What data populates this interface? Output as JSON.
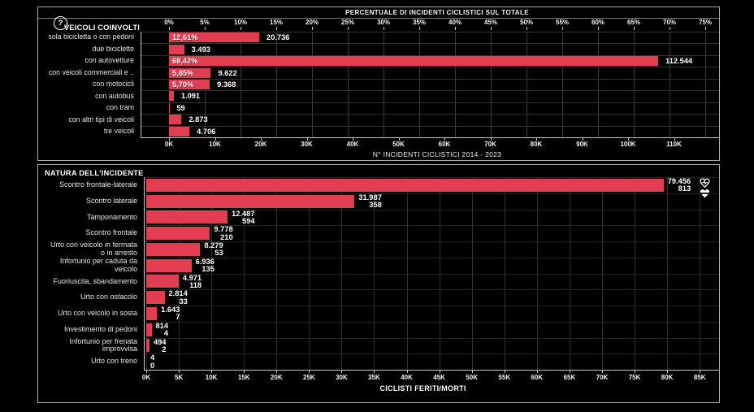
{
  "window": {
    "background": "#000000",
    "panel_border": "#a9a9a9",
    "bar_color": "#e23e52",
    "help_glyph": "?"
  },
  "icons": {
    "help": "question-circle-icon",
    "injured": "heart-pulse-icon",
    "deaths": "heart-flatline-icon"
  },
  "chart_data": [
    {
      "type": "bar",
      "title": "VEICOLI COINVOLTI",
      "top_axis": {
        "label": "PERCENTUALE DI INCIDENTI CICLISTICI SUL TOTALE",
        "tick_labels": [
          "0%",
          "5%",
          "10%",
          "15%",
          "20%",
          "25%",
          "30%",
          "35%",
          "40%",
          "45%",
          "50%",
          "55%",
          "60%",
          "65%",
          "70%",
          "75%"
        ],
        "range_pct": [
          0,
          75
        ]
      },
      "bottom_axis": {
        "label": "N° INCIDENTI CICLISTICI 2014 - 2023",
        "tick_labels": [
          "0K",
          "10K",
          "20K",
          "30K",
          "40K",
          "50K",
          "60K",
          "70K",
          "80K",
          "90K",
          "100K",
          "110K"
        ],
        "range": [
          0,
          110000
        ]
      },
      "grid": true,
      "categories": [
        "sola bicicletta o con pedoni",
        "due biciclette",
        "con autovetture",
        "con veicoli commerciali e ..",
        "con motocicli",
        "con autobus",
        "con tram",
        "con altri tipi di veicoli",
        "tre veicoli"
      ],
      "values": [
        20736,
        3493,
        112544,
        9622,
        9368,
        1091,
        59,
        2873,
        4706
      ],
      "value_labels": [
        "20.736",
        "3.493",
        "112.544",
        "9.622",
        "9.368",
        "1.091",
        "59",
        "2.873",
        "4.706"
      ],
      "pct_labels": [
        "12,61%",
        "",
        "68,42%",
        "5,85%",
        "5,70%",
        "",
        "",
        "",
        ""
      ]
    },
    {
      "type": "bar",
      "title": "NATURA DELL'INCIDENTE",
      "x_axis": {
        "label": "CICLISTI FERITI/MORTI",
        "tick_labels": [
          "0K",
          "5K",
          "10K",
          "15K",
          "20K",
          "25K",
          "30K",
          "35K",
          "40K",
          "45K",
          "50K",
          "55K",
          "60K",
          "65K",
          "70K",
          "75K",
          "80K",
          "85K"
        ],
        "range": [
          0,
          85000
        ]
      },
      "grid": true,
      "legend_position": "top-right",
      "categories": [
        "Scontro frontale-laterale",
        "Scontro laterale",
        "Tamponamento",
        "Scontro frontale",
        "Urto con veicolo in fermata\no in arresto",
        "Infortunio per caduta da\nveicolo",
        "Fuoriuscita, sbandamento",
        "Urto con ostacolo",
        "Urto con veicolo in sosta",
        "Investimento di pedoni",
        "Infortunio per frenata\nimprovvisa",
        "Urto con treno"
      ],
      "series": [
        {
          "name": "feriti",
          "icon": "heart-pulse-icon",
          "values": [
            79456,
            31987,
            12487,
            9778,
            8279,
            6936,
            4971,
            2814,
            1643,
            814,
            494,
            4
          ],
          "labels": [
            "79.456",
            "31.987",
            "12.487",
            "9.778",
            "8.279",
            "6.936",
            "4.971",
            "2.814",
            "1.643",
            "814",
            "494",
            "4"
          ]
        },
        {
          "name": "morti",
          "icon": "heart-flatline-icon",
          "values": [
            813,
            358,
            594,
            210,
            53,
            135,
            118,
            33,
            7,
            4,
            2,
            0
          ],
          "labels": [
            "813",
            "358",
            "594",
            "210",
            "53",
            "135",
            "118",
            "33",
            "7",
            "4",
            "2",
            "0"
          ]
        }
      ]
    }
  ]
}
